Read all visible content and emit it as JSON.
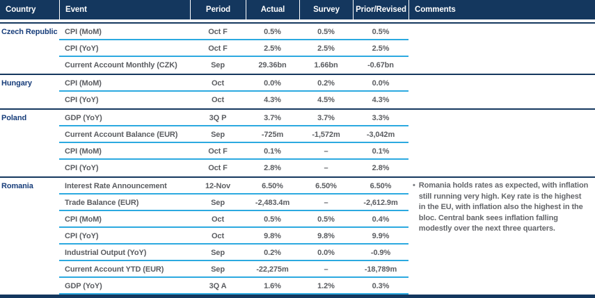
{
  "header": {
    "columns": [
      "Country",
      "Event",
      "Period",
      "Actual",
      "Survey",
      "Prior/Revised",
      "Comments"
    ]
  },
  "comment_bullet": "•",
  "colors": {
    "header_bg": "#14375e",
    "group_separator": "#14375e",
    "row_separator": "#2ba9e0",
    "country_text": "#173d7a",
    "cell_text": "#5a5c60",
    "comment_text": "#636569"
  },
  "groups": [
    {
      "country": "Czech Republic",
      "comment": "",
      "rows": [
        {
          "event": "CPI (MoM)",
          "period": "Oct F",
          "actual": "0.5%",
          "survey": "0.5%",
          "prior": "0.5%"
        },
        {
          "event": "CPI (YoY)",
          "period": "Oct F",
          "actual": "2.5%",
          "survey": "2.5%",
          "prior": "2.5%"
        },
        {
          "event": "Current Account Monthly (CZK)",
          "period": "Sep",
          "actual": "29.36bn",
          "survey": "1.66bn",
          "prior": "-0.67bn"
        }
      ]
    },
    {
      "country": "Hungary",
      "comment": "",
      "rows": [
        {
          "event": "CPI (MoM)",
          "period": "Oct",
          "actual": "0.0%",
          "survey": "0.2%",
          "prior": "0.0%"
        },
        {
          "event": "CPI (YoY)",
          "period": "Oct",
          "actual": "4.3%",
          "survey": "4.5%",
          "prior": "4.3%"
        }
      ]
    },
    {
      "country": "Poland",
      "comment": "",
      "rows": [
        {
          "event": "GDP (YoY)",
          "period": "3Q P",
          "actual": "3.7%",
          "survey": "3.7%",
          "prior": "3.3%"
        },
        {
          "event": "Current Account Balance (EUR)",
          "period": "Sep",
          "actual": "-725m",
          "survey": "-1,572m",
          "prior": "-3,042m"
        },
        {
          "event": "CPI (MoM)",
          "period": "Oct F",
          "actual": "0.1%",
          "survey": "–",
          "prior": "0.1%"
        },
        {
          "event": "CPI (YoY)",
          "period": "Oct F",
          "actual": "2.8%",
          "survey": "–",
          "prior": "2.8%"
        }
      ]
    },
    {
      "country": "Romania",
      "comment": "Romania holds rates as expected, with inflation still running very high. Key rate is the highest in the EU, with inflation also the highest in the bloc. Central bank sees inflation falling modestly over the next three quarters.",
      "rows": [
        {
          "event": "Interest Rate Announcement",
          "period": "12-Nov",
          "actual": "6.50%",
          "survey": "6.50%",
          "prior": "6.50%"
        },
        {
          "event": "Trade Balance (EUR)",
          "period": "Sep",
          "actual": "-2,483.4m",
          "survey": "–",
          "prior": "-2,612.9m"
        },
        {
          "event": "CPI (MoM)",
          "period": "Oct",
          "actual": "0.5%",
          "survey": "0.5%",
          "prior": "0.4%"
        },
        {
          "event": "CPI (YoY)",
          "period": "Oct",
          "actual": "9.8%",
          "survey": "9.8%",
          "prior": "9.9%"
        },
        {
          "event": "Industrial Output (YoY)",
          "period": "Sep",
          "actual": "0.2%",
          "survey": "0.0%",
          "prior": "-0.9%"
        },
        {
          "event": "Current Account YTD (EUR)",
          "period": "Sep",
          "actual": "-22,275m",
          "survey": "–",
          "prior": "-18,789m"
        },
        {
          "event": "GDP (YoY)",
          "period": "3Q A",
          "actual": "1.6%",
          "survey": "1.2%",
          "prior": "0.3%"
        }
      ]
    }
  ]
}
